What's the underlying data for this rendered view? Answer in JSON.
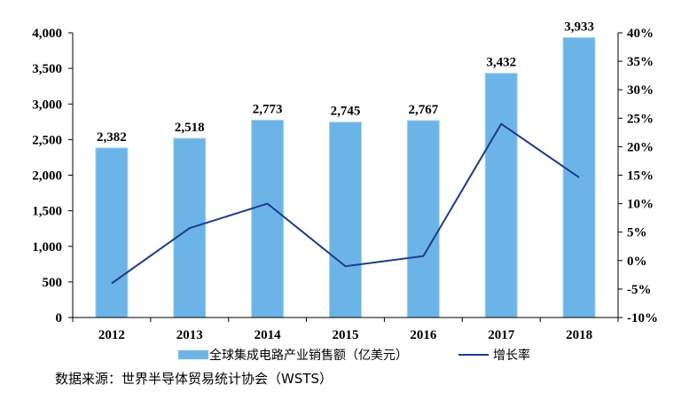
{
  "chart_data": {
    "type": "bar",
    "categories": [
      "2012",
      "2013",
      "2014",
      "2015",
      "2016",
      "2017",
      "2018"
    ],
    "series": [
      {
        "name": "全球集成电路产业销售额（亿美元）",
        "type": "bar",
        "axis": "left",
        "values": [
          2382,
          2518,
          2773,
          2745,
          2767,
          3432,
          3933
        ],
        "value_labels": [
          "2,382",
          "2,518",
          "2,773",
          "2,745",
          "2,767",
          "3,432",
          "3,933"
        ],
        "color": "#6cb4e8"
      },
      {
        "name": "增长率",
        "type": "line",
        "axis": "right",
        "values": [
          -4.0,
          5.7,
          10.0,
          -1.0,
          0.8,
          24.0,
          14.6
        ],
        "color": "#1f3b8a"
      }
    ],
    "y_left": {
      "ylim": [
        0,
        4000
      ],
      "ticks": [
        0,
        500,
        1000,
        1500,
        2000,
        2500,
        3000,
        3500,
        4000
      ],
      "tick_labels": [
        "0",
        "500",
        "1,000",
        "1,500",
        "2,000",
        "2,500",
        "3,000",
        "3,500",
        "4,000"
      ]
    },
    "y_right": {
      "ylim": [
        -10,
        40
      ],
      "ticks": [
        -10,
        -5,
        0,
        5,
        10,
        15,
        20,
        25,
        30,
        35,
        40
      ],
      "tick_labels": [
        "-10%",
        "-5%",
        "0%",
        "5%",
        "10%",
        "15%",
        "20%",
        "25%",
        "30%",
        "35%",
        "40%"
      ]
    },
    "grid": false,
    "legend": "bottom"
  },
  "source_note": "数据来源：世界半导体贸易统计协会（WSTS）"
}
